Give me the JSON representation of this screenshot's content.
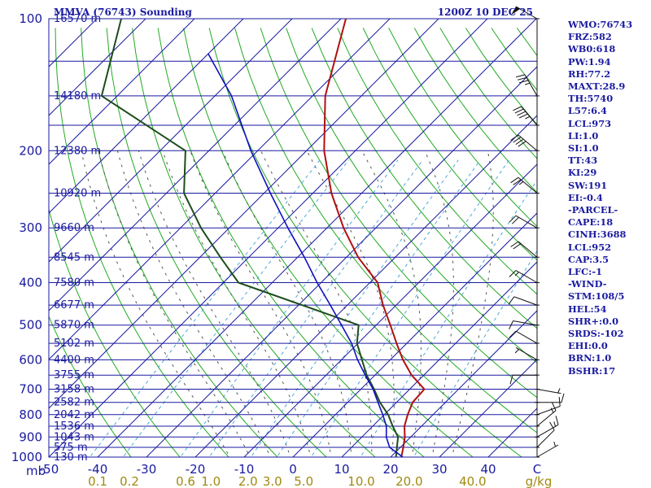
{
  "header": {
    "station": "MMVA (76743) Sounding",
    "time": "1200Z 10 DEC 25"
  },
  "indices": [
    "WMO:76743",
    "FRZ:582",
    "WB0:618",
    "PW:1.94",
    "RH:77.2",
    "MAXT:28.9",
    "TH:5740",
    "L57:6.4",
    "LCL:973",
    "LI:1.0",
    "SI:1.0",
    "TT:43",
    "KI:29",
    "SW:191",
    "EI:-0.4",
    "-PARCEL-",
    "CAPE:18",
    "CINH:3688",
    "LCL:952",
    "CAP:3.5",
    "LFC:-1",
    "-WIND-",
    "STM:108/5",
    "HEL:54",
    "SHR+:0.0",
    "SRDS:-102",
    "EHI:0.0",
    "BRN:1.0",
    "BSHR:17"
  ],
  "colors": {
    "axis": "#1a1aa0",
    "isobar": "#1a1aa0",
    "isotherm": "#1a1aa0",
    "dry_adiabat": "#22aa22",
    "moist_adiabat": "#555555",
    "mixing_ratio": "#4fa8d8",
    "temperature": "#b01010",
    "dewpoint": "#1d4d1d",
    "parcel": "#1010c0",
    "mixing_label": "#a08a10",
    "wind": "#111111"
  },
  "chart_data": {
    "type": "line",
    "title": "MMVA (76743) Sounding",
    "xlabel": "°C",
    "ylabel": "mb",
    "xlim": [
      -50,
      50
    ],
    "ylim": [
      1000,
      100
    ],
    "p_axis_unit": "mb",
    "temperature_unit": "C",
    "mixing_ratio_unit": "g/kg",
    "pressure_ticks": [
      100,
      200,
      300,
      400,
      500,
      600,
      700,
      800,
      900,
      1000
    ],
    "temperature_ticks": [
      -50,
      -40,
      -30,
      -20,
      -10,
      0,
      10,
      20,
      30,
      40
    ],
    "temperature_tick_labels": [
      "-50",
      "-40",
      "-30",
      "-20",
      "-10",
      "0",
      "10",
      "20",
      "30",
      "40"
    ],
    "mixing_ratio_labels": [
      {
        "label": "0.1",
        "t": -40
      },
      {
        "label": "0.2",
        "t": -33.5
      },
      {
        "label": "0.6",
        "t": -22
      },
      {
        "label": "1.0",
        "t": -16.8
      },
      {
        "label": "2.0",
        "t": -9.2
      },
      {
        "label": "3.0",
        "t": -4.2
      },
      {
        "label": "5.0",
        "t": 2.2
      },
      {
        "label": "10.0",
        "t": 14
      },
      {
        "label": "20.0",
        "t": 23.8
      },
      {
        "label": "40.0",
        "t": 36.8
      }
    ],
    "mixing_ratio_lines": [
      0.1,
      0.2,
      0.6,
      1.0,
      2.0,
      3.0,
      5.0,
      10.0,
      20.0
    ],
    "height_labels": [
      {
        "p": 100,
        "label": "16570 m"
      },
      {
        "p": 150,
        "label": "14180 m"
      },
      {
        "p": 200,
        "label": "12380 m"
      },
      {
        "p": 250,
        "label": "10920 m"
      },
      {
        "p": 300,
        "label": "9660 m"
      },
      {
        "p": 350,
        "label": "8545 m"
      },
      {
        "p": 400,
        "label": "7580 m"
      },
      {
        "p": 450,
        "label": "6677 m"
      },
      {
        "p": 500,
        "label": "5870 m"
      },
      {
        "p": 550,
        "label": "5102 m"
      },
      {
        "p": 600,
        "label": "4400 m"
      },
      {
        "p": 650,
        "label": "3755 m"
      },
      {
        "p": 700,
        "label": "3158 m"
      },
      {
        "p": 750,
        "label": "2582 m"
      },
      {
        "p": 800,
        "label": "2042 m"
      },
      {
        "p": 850,
        "label": "1536 m"
      },
      {
        "p": 900,
        "label": "1043 m"
      },
      {
        "p": 950,
        "label": "575 m"
      },
      {
        "p": 1000,
        "label": "130 m"
      }
    ],
    "series": [
      {
        "name": "temperature",
        "points": [
          {
            "p": 1000,
            "t": 22.2
          },
          {
            "p": 950,
            "t": 20.6
          },
          {
            "p": 900,
            "t": 18.8
          },
          {
            "p": 850,
            "t": 16.5
          },
          {
            "p": 800,
            "t": 14.8
          },
          {
            "p": 750,
            "t": 13.3
          },
          {
            "p": 700,
            "t": 13.0
          },
          {
            "p": 650,
            "t": 7.5
          },
          {
            "p": 600,
            "t": 2.6
          },
          {
            "p": 550,
            "t": -2.1
          },
          {
            "p": 500,
            "t": -7.1
          },
          {
            "p": 450,
            "t": -12.7
          },
          {
            "p": 400,
            "t": -18.4
          },
          {
            "p": 350,
            "t": -27.6
          },
          {
            "p": 300,
            "t": -36.6
          },
          {
            "p": 250,
            "t": -46.2
          },
          {
            "p": 200,
            "t": -56.4
          },
          {
            "p": 150,
            "t": -67.4
          },
          {
            "p": 100,
            "t": -79.0
          }
        ]
      },
      {
        "name": "dewpoint",
        "points": [
          {
            "p": 1000,
            "t": 21.1
          },
          {
            "p": 950,
            "t": 19.3
          },
          {
            "p": 900,
            "t": 17.4
          },
          {
            "p": 850,
            "t": 14.1
          },
          {
            "p": 800,
            "t": 10.8
          },
          {
            "p": 750,
            "t": 6.6
          },
          {
            "p": 700,
            "t": 2.7
          },
          {
            "p": 650,
            "t": -1.7
          },
          {
            "p": 600,
            "t": -5.8
          },
          {
            "p": 550,
            "t": -10.2
          },
          {
            "p": 500,
            "t": -13.6
          },
          {
            "p": 400,
            "t": -46.9
          },
          {
            "p": 350,
            "t": -55.8
          },
          {
            "p": 300,
            "t": -65.8
          },
          {
            "p": 250,
            "t": -76.4
          },
          {
            "p": 200,
            "t": -84.8
          },
          {
            "p": 150,
            "t": -113.2
          },
          {
            "p": 100,
            "t": -125.0
          }
        ]
      },
      {
        "name": "parcel",
        "points": [
          {
            "p": 1000,
            "t": 22.5
          },
          {
            "p": 950,
            "t": 17.8
          },
          {
            "p": 900,
            "t": 15.0
          },
          {
            "p": 850,
            "t": 12.8
          },
          {
            "p": 800,
            "t": 9.7
          },
          {
            "p": 750,
            "t": 6.2
          },
          {
            "p": 700,
            "t": 2.5
          },
          {
            "p": 650,
            "t": -2.0
          },
          {
            "p": 600,
            "t": -6.7
          },
          {
            "p": 550,
            "t": -11.3
          },
          {
            "p": 500,
            "t": -17.1
          },
          {
            "p": 450,
            "t": -23.5
          },
          {
            "p": 400,
            "t": -30.8
          },
          {
            "p": 350,
            "t": -38.6
          },
          {
            "p": 300,
            "t": -48.0
          },
          {
            "p": 250,
            "t": -58.7
          },
          {
            "p": 200,
            "t": -71.4
          },
          {
            "p": 150,
            "t": -86.6
          },
          {
            "p": 120,
            "t": -100.1
          }
        ]
      }
    ],
    "wind": [
      {
        "p": 1000,
        "dir": 60,
        "spd": 5
      },
      {
        "p": 950,
        "dir": 45,
        "spd": 10
      },
      {
        "p": 900,
        "dir": 60,
        "spd": 15
      },
      {
        "p": 850,
        "dir": 50,
        "spd": 15
      },
      {
        "p": 800,
        "dir": 70,
        "spd": 10
      },
      {
        "p": 750,
        "dir": 90,
        "spd": 10
      },
      {
        "p": 700,
        "dir": 100,
        "spd": 5
      },
      {
        "p": 650,
        "dir": 270,
        "spd": 10
      },
      {
        "p": 600,
        "dir": 300,
        "spd": 5
      },
      {
        "p": 550,
        "dir": 300,
        "spd": 10
      },
      {
        "p": 500,
        "dir": 280,
        "spd": 10
      },
      {
        "p": 450,
        "dir": 290,
        "spd": 10
      },
      {
        "p": 400,
        "dir": 300,
        "spd": 15
      },
      {
        "p": 350,
        "dir": 310,
        "spd": 20
      },
      {
        "p": 300,
        "dir": 300,
        "spd": 20
      },
      {
        "p": 250,
        "dir": 310,
        "spd": 25
      },
      {
        "p": 200,
        "dir": 310,
        "spd": 40
      },
      {
        "p": 175,
        "dir": 320,
        "spd": 45
      },
      {
        "p": 150,
        "dir": 330,
        "spd": 35
      },
      {
        "p": 100,
        "dir": 300,
        "spd": 50
      }
    ]
  }
}
